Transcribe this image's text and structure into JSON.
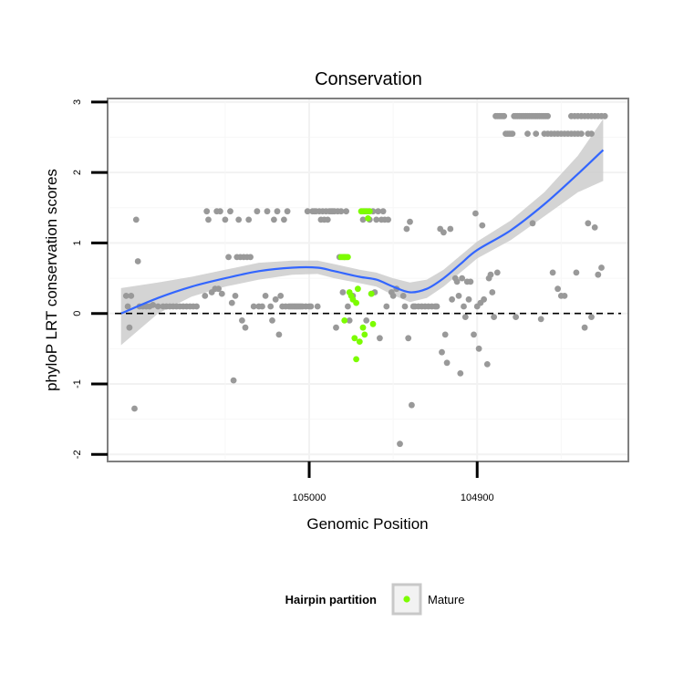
{
  "chart_data": {
    "type": "scatter",
    "title": "Conservation",
    "xlabel": "Genomic Position",
    "ylabel": "phyloP LRT conservation scores",
    "x_reversed": true,
    "xlim": [
      105120,
      104810
    ],
    "ylim": [
      -2.1,
      3.05
    ],
    "x_ticks": [
      105000,
      104900
    ],
    "x_tick_labels": [
      "105000",
      "104900"
    ],
    "y_ticks": [
      -2,
      -1,
      0,
      1,
      2,
      3
    ],
    "y_tick_labels": [
      "-2",
      "-1",
      "0",
      "1",
      "2",
      "3"
    ],
    "y_reference_line": 0,
    "grid": true,
    "legend": {
      "title": "Hairpin partition",
      "entries": [
        {
          "label": "Mature",
          "color": "#7cfc00"
        }
      ],
      "position": "bottom"
    },
    "colors": {
      "background_points": "#999999",
      "mature_points": "#7cfc00",
      "smooth_line": "#3366ff",
      "confidence_band": "#cccccc"
    },
    "series": [
      {
        "kind": "points",
        "color": "#999999",
        "points": [
          [
            105109,
            0.25
          ],
          [
            105108,
            0.1
          ],
          [
            105107,
            -0.2
          ],
          [
            105106,
            0.25
          ],
          [
            105104,
            -1.35
          ],
          [
            105103,
            1.33
          ],
          [
            105102,
            0.74
          ],
          [
            105101,
            0.1
          ],
          [
            105099,
            0.1
          ],
          [
            105097,
            0.1
          ],
          [
            105095,
            0.1
          ],
          [
            105093,
            0.12
          ],
          [
            105090,
            0.1
          ],
          [
            105087,
            0.1
          ],
          [
            105085,
            0.1
          ],
          [
            105083,
            0.1
          ],
          [
            105081,
            0.1
          ],
          [
            105079,
            0.1
          ],
          [
            105077,
            0.1
          ],
          [
            105075,
            0.1
          ],
          [
            105073,
            0.1
          ],
          [
            105071,
            0.1
          ],
          [
            105069,
            0.1
          ],
          [
            105067,
            0.1
          ],
          [
            105062,
            0.25
          ],
          [
            105061,
            1.45
          ],
          [
            105060,
            1.33
          ],
          [
            105058,
            0.3
          ],
          [
            105056,
            0.35
          ],
          [
            105055,
            1.45
          ],
          [
            105054,
            0.35
          ],
          [
            105053,
            1.45
          ],
          [
            105052,
            0.28
          ],
          [
            105050,
            1.33
          ],
          [
            105048,
            0.8
          ],
          [
            105047,
            1.45
          ],
          [
            105046,
            0.15
          ],
          [
            105045,
            -0.95
          ],
          [
            105044,
            0.25
          ],
          [
            105043,
            0.8
          ],
          [
            105042,
            1.33
          ],
          [
            105041,
            0.8
          ],
          [
            105040,
            -0.1
          ],
          [
            105039,
            0.8
          ],
          [
            105038,
            -0.2
          ],
          [
            105037,
            0.8
          ],
          [
            105036,
            1.33
          ],
          [
            105035,
            0.8
          ],
          [
            105033,
            0.1
          ],
          [
            105031,
            1.45
          ],
          [
            105030,
            0.1
          ],
          [
            105028,
            0.1
          ],
          [
            105026,
            0.25
          ],
          [
            105025,
            1.45
          ],
          [
            105023,
            0.1
          ],
          [
            105022,
            -0.1
          ],
          [
            105021,
            1.33
          ],
          [
            105020,
            0.2
          ],
          [
            105019,
            1.45
          ],
          [
            105018,
            -0.3
          ],
          [
            105017,
            0.25
          ],
          [
            105016,
            0.1
          ],
          [
            105015,
            1.33
          ],
          [
            105014,
            0.1
          ],
          [
            105013,
            1.45
          ],
          [
            105012,
            0.1
          ],
          [
            105011,
            0.1
          ],
          [
            105010,
            0.1
          ],
          [
            105009,
            0.1
          ],
          [
            105008,
            0.1
          ],
          [
            105007,
            0.1
          ],
          [
            105006,
            0.1
          ],
          [
            105005,
            0.1
          ],
          [
            105004,
            0.1
          ],
          [
            105002,
            0.1
          ],
          [
            105001,
            1.45
          ],
          [
            105000,
            0.1
          ],
          [
            104999,
            0.1
          ],
          [
            104998,
            1.45
          ],
          [
            104997,
            1.45
          ],
          [
            104996,
            1.45
          ],
          [
            104995,
            0.1
          ],
          [
            104994,
            1.45
          ],
          [
            104993,
            1.33
          ],
          [
            104992,
            1.45
          ],
          [
            104991,
            1.33
          ],
          [
            104990,
            1.45
          ],
          [
            104989,
            1.33
          ],
          [
            104988,
            1.45
          ],
          [
            104987,
            1.45
          ],
          [
            104986,
            1.45
          ],
          [
            104985,
            1.45
          ],
          [
            104984,
            -0.2
          ],
          [
            104983,
            1.45
          ],
          [
            104982,
            0.8
          ],
          [
            104981,
            1.45
          ],
          [
            104980,
            0.3
          ],
          [
            104979,
            0.8
          ],
          [
            104978,
            1.45
          ],
          [
            104977,
            0.1
          ],
          [
            104976,
            -0.1
          ],
          [
            104974,
            0.25
          ],
          [
            104968,
            1.33
          ],
          [
            104967,
            1.45
          ],
          [
            104966,
            -0.1
          ],
          [
            104965,
            1.45
          ],
          [
            104964,
            1.33
          ],
          [
            104963,
            0.28
          ],
          [
            104962,
            1.45
          ],
          [
            104961,
            0.3
          ],
          [
            104960,
            1.33
          ],
          [
            104959,
            1.45
          ],
          [
            104958,
            -0.35
          ],
          [
            104957,
            1.33
          ],
          [
            104956,
            1.45
          ],
          [
            104955,
            1.33
          ],
          [
            104954,
            0.1
          ],
          [
            104953,
            1.33
          ],
          [
            104951,
            0.3
          ],
          [
            104950,
            0.25
          ],
          [
            104948,
            0.35
          ],
          [
            104946,
            -1.85
          ],
          [
            104944,
            0.25
          ],
          [
            104943,
            0.1
          ],
          [
            104942,
            1.2
          ],
          [
            104941,
            -0.35
          ],
          [
            104940,
            1.3
          ],
          [
            104939,
            -1.3
          ],
          [
            104938,
            0.1
          ],
          [
            104937,
            0.1
          ],
          [
            104935,
            0.1
          ],
          [
            104933,
            0.1
          ],
          [
            104931,
            0.1
          ],
          [
            104929,
            0.1
          ],
          [
            104927,
            0.1
          ],
          [
            104925,
            0.1
          ],
          [
            104924,
            0.1
          ],
          [
            104922,
            1.2
          ],
          [
            104921,
            -0.55
          ],
          [
            104920,
            1.15
          ],
          [
            104919,
            -0.3
          ],
          [
            104918,
            -0.7
          ],
          [
            104916,
            1.2
          ],
          [
            104915,
            0.2
          ],
          [
            104913,
            0.5
          ],
          [
            104912,
            0.45
          ],
          [
            104911,
            0.25
          ],
          [
            104910,
            -0.85
          ],
          [
            104909,
            0.5
          ],
          [
            104908,
            0.1
          ],
          [
            104907,
            -0.05
          ],
          [
            104906,
            0.45
          ],
          [
            104905,
            0.2
          ],
          [
            104904,
            0.45
          ],
          [
            104902,
            -0.3
          ],
          [
            104901,
            1.42
          ],
          [
            104900,
            0.1
          ],
          [
            104899,
            -0.5
          ],
          [
            104898,
            0.15
          ],
          [
            104897,
            1.25
          ],
          [
            104896,
            0.2
          ],
          [
            104894,
            -0.72
          ],
          [
            104893,
            0.5
          ],
          [
            104892,
            0.55
          ],
          [
            104891,
            0.3
          ],
          [
            104890,
            -0.05
          ],
          [
            104888,
            0.58
          ],
          [
            104889,
            2.8
          ],
          [
            104888,
            2.8
          ],
          [
            104887,
            2.8
          ],
          [
            104886,
            2.8
          ],
          [
            104885,
            2.8
          ],
          [
            104884,
            2.8
          ],
          [
            104883,
            2.55
          ],
          [
            104882,
            2.55
          ],
          [
            104881,
            2.55
          ],
          [
            104880,
            2.55
          ],
          [
            104879,
            2.55
          ],
          [
            104878,
            2.8
          ],
          [
            104877,
            2.8
          ],
          [
            104876,
            2.8
          ],
          [
            104875,
            2.8
          ],
          [
            104874,
            2.8
          ],
          [
            104873,
            2.8
          ],
          [
            104872,
            2.8
          ],
          [
            104871,
            2.8
          ],
          [
            104870,
            2.8
          ],
          [
            104869,
            2.8
          ],
          [
            104868,
            2.8
          ],
          [
            104867,
            2.8
          ],
          [
            104866,
            2.8
          ],
          [
            104865,
            2.8
          ],
          [
            104864,
            2.8
          ],
          [
            104863,
            2.8
          ],
          [
            104862,
            2.8
          ],
          [
            104861,
            2.8
          ],
          [
            104860,
            2.8
          ],
          [
            104859,
            2.8
          ],
          [
            104858,
            2.8
          ],
          [
            104877,
            -0.05
          ],
          [
            104870,
            2.55
          ],
          [
            104867,
            1.28
          ],
          [
            104865,
            2.55
          ],
          [
            104862,
            -0.08
          ],
          [
            104860,
            2.55
          ],
          [
            104858,
            2.55
          ],
          [
            104856,
            2.55
          ],
          [
            104854,
            2.55
          ],
          [
            104852,
            2.55
          ],
          [
            104850,
            2.55
          ],
          [
            104848,
            2.55
          ],
          [
            104846,
            2.55
          ],
          [
            104844,
            2.55
          ],
          [
            104842,
            2.55
          ],
          [
            104840,
            2.55
          ],
          [
            104838,
            2.55
          ],
          [
            104855,
            0.58
          ],
          [
            104852,
            0.35
          ],
          [
            104850,
            0.25
          ],
          [
            104848,
            0.25
          ],
          [
            104844,
            2.8
          ],
          [
            104842,
            2.8
          ],
          [
            104840,
            2.8
          ],
          [
            104838,
            2.8
          ],
          [
            104836,
            2.8
          ],
          [
            104834,
            2.8
          ],
          [
            104832,
            2.8
          ],
          [
            104830,
            2.8
          ],
          [
            104828,
            2.8
          ],
          [
            104826,
            2.8
          ],
          [
            104824,
            2.8
          ],
          [
            104841,
            0.58
          ],
          [
            104836,
            -0.2
          ],
          [
            104834,
            1.28
          ],
          [
            104832,
            -0.05
          ],
          [
            104830,
            1.22
          ],
          [
            104828,
            0.55
          ],
          [
            104826,
            0.65
          ],
          [
            104834,
            2.55
          ],
          [
            104832,
            2.55
          ]
        ]
      },
      {
        "name": "Mature",
        "kind": "points",
        "color": "#7cfc00",
        "points": [
          [
            104980,
            0.8
          ],
          [
            104979,
            0.8
          ],
          [
            104978,
            0.8
          ],
          [
            104977,
            0.8
          ],
          [
            104976,
            0.3
          ],
          [
            104975,
            0.25
          ],
          [
            104974,
            0.2
          ],
          [
            104973,
            -0.35
          ],
          [
            104972,
            -0.65
          ],
          [
            104971,
            0.35
          ],
          [
            104970,
            -0.4
          ],
          [
            104969,
            1.45
          ],
          [
            104968,
            1.45
          ],
          [
            104967,
            -0.3
          ],
          [
            104966,
            1.45
          ],
          [
            104965,
            1.35
          ],
          [
            104964,
            1.45
          ],
          [
            104963,
            0.28
          ],
          [
            104962,
            -0.15
          ],
          [
            104981,
            0.8
          ],
          [
            104979,
            -0.1
          ],
          [
            104972,
            0.15
          ],
          [
            104968,
            -0.2
          ]
        ]
      },
      {
        "kind": "smooth",
        "color": "#3366ff",
        "x": [
          105112,
          105090,
          105070,
          105050,
          105030,
          105010,
          104995,
          104985,
          104970,
          104960,
          104950,
          104940,
          104930,
          104920,
          104910,
          104900,
          104880,
          104860,
          104840,
          104825
        ],
        "y": [
          0.0,
          0.22,
          0.38,
          0.5,
          0.6,
          0.65,
          0.65,
          0.6,
          0.52,
          0.48,
          0.38,
          0.3,
          0.35,
          0.5,
          0.7,
          0.9,
          1.18,
          1.55,
          1.98,
          2.32
        ],
        "band_lower": [
          -0.45,
          0.0,
          0.24,
          0.38,
          0.48,
          0.55,
          0.56,
          0.5,
          0.43,
          0.38,
          0.26,
          0.16,
          0.22,
          0.38,
          0.58,
          0.78,
          1.04,
          1.38,
          1.72,
          1.88
        ],
        "band_upper": [
          0.36,
          0.44,
          0.52,
          0.62,
          0.72,
          0.75,
          0.75,
          0.7,
          0.62,
          0.58,
          0.5,
          0.44,
          0.48,
          0.62,
          0.82,
          1.02,
          1.32,
          1.72,
          2.24,
          2.76
        ]
      }
    ]
  }
}
